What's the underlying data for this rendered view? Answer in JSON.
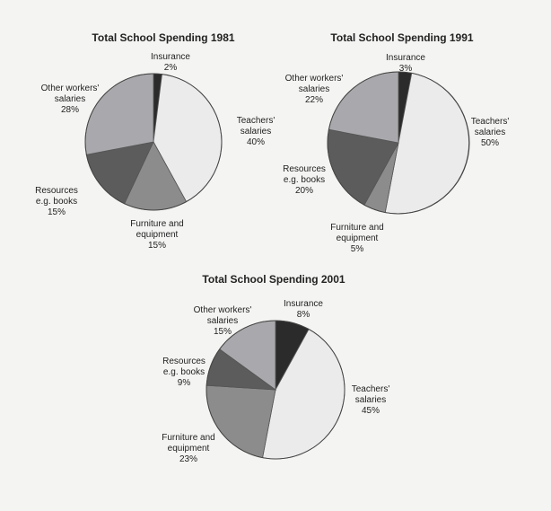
{
  "colors": {
    "Insurance": "#2b2b2b",
    "Teachers' salaries": "#ebebeb",
    "Furniture and equipment": "#8c8c8c",
    "Resources e.g. books": "#5c5c5c",
    "Other workers' salaries": "#a9a9ad"
  },
  "chart_data": [
    {
      "type": "pie",
      "title": "Total School Spending 1981",
      "slices": [
        {
          "label": "Insurance",
          "name_lines": [
            "Insurance"
          ],
          "value": 2,
          "value_text": "2%"
        },
        {
          "label": "Teachers' salaries",
          "name_lines": [
            "Teachers'",
            "salaries"
          ],
          "value": 40,
          "value_text": "40%"
        },
        {
          "label": "Furniture and equipment",
          "name_lines": [
            "Furniture and",
            "equipment"
          ],
          "value": 15,
          "value_text": "15%"
        },
        {
          "label": "Resources e.g. books",
          "name_lines": [
            "Resources",
            "e.g. books"
          ],
          "value": 15,
          "value_text": "15%"
        },
        {
          "label": "Other workers' salaries",
          "name_lines": [
            "Other workers'",
            "salaries"
          ],
          "value": 28,
          "value_text": "28%"
        }
      ]
    },
    {
      "type": "pie",
      "title": "Total School Spending 1991",
      "slices": [
        {
          "label": "Insurance",
          "name_lines": [
            "Insurance"
          ],
          "value": 3,
          "value_text": "3%"
        },
        {
          "label": "Teachers' salaries",
          "name_lines": [
            "Teachers'",
            "salaries"
          ],
          "value": 50,
          "value_text": "50%"
        },
        {
          "label": "Furniture and equipment",
          "name_lines": [
            "Furniture and",
            "equipment"
          ],
          "value": 5,
          "value_text": "5%"
        },
        {
          "label": "Resources e.g. books",
          "name_lines": [
            "Resources",
            "e.g. books"
          ],
          "value": 20,
          "value_text": "20%"
        },
        {
          "label": "Other workers' salaries",
          "name_lines": [
            "Other workers'",
            "salaries"
          ],
          "value": 22,
          "value_text": "22%"
        }
      ]
    },
    {
      "type": "pie",
      "title": "Total School Spending 2001",
      "slices": [
        {
          "label": "Insurance",
          "name_lines": [
            "Insurance"
          ],
          "value": 8,
          "value_text": "8%"
        },
        {
          "label": "Teachers' salaries",
          "name_lines": [
            "Teachers'",
            "salaries"
          ],
          "value": 45,
          "value_text": "45%"
        },
        {
          "label": "Furniture and equipment",
          "name_lines": [
            "Furniture and",
            "equipment"
          ],
          "value": 23,
          "value_text": "23%"
        },
        {
          "label": "Resources e.g. books",
          "name_lines": [
            "Resources",
            "e.g. books"
          ],
          "value": 9,
          "value_text": "9%"
        },
        {
          "label": "Other workers' salaries",
          "name_lines": [
            "Other workers'",
            "salaries"
          ],
          "value": 15,
          "value_text": "15%"
        }
      ]
    }
  ]
}
